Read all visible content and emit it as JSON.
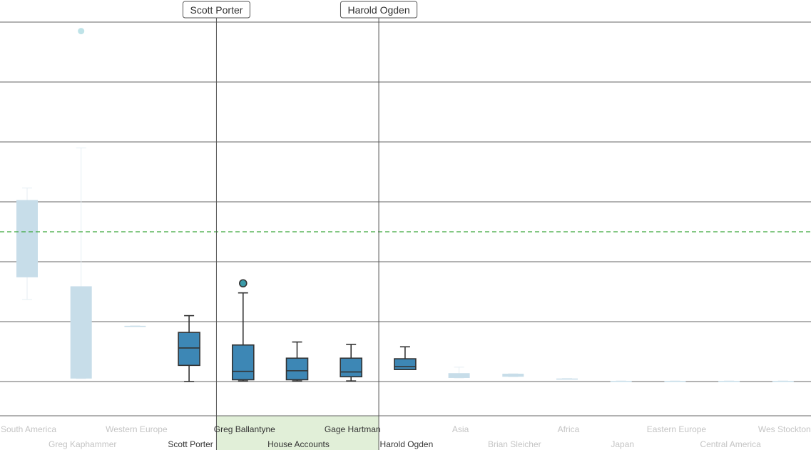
{
  "chart_data": {
    "type": "boxplot",
    "title": "",
    "xlabel": "",
    "ylabel": "",
    "ylim": [
      0,
      600
    ],
    "grid": true,
    "reference_line": {
      "value": 250,
      "style": "dashed",
      "color": "#3aa63a"
    },
    "selection": {
      "start_marker": "Scott Porter",
      "end_marker": "Harold Ogden",
      "highlighted_categories": [
        "Greg Ballantyne",
        "House Accounts",
        "Gage Hartman"
      ]
    },
    "colors": {
      "active_box": "#3d87b5",
      "inactive_box": "#c7dde9",
      "outlier_active": "#3a9aa8",
      "outlier_inactive": "#bfe3e8",
      "selection_fill": "#e1efd8",
      "grid": "#333333",
      "active_label": "#333333",
      "inactive_label": "#c4c4c4"
    },
    "categories": [
      {
        "name": "South America",
        "active": false,
        "row": 0,
        "min": 137,
        "q1": 174,
        "median": 174,
        "q3": 303,
        "max": 323,
        "outliers": []
      },
      {
        "name": "Greg Kaphammer",
        "active": false,
        "row": 1,
        "min": 5,
        "q1": 5,
        "median": 5,
        "q3": 159,
        "max": 390,
        "outliers": [
          585
        ]
      },
      {
        "name": "Western Europe",
        "active": false,
        "row": 0,
        "min": 93,
        "q1": 93,
        "median": 93,
        "q3": 93,
        "max": 93,
        "outliers": []
      },
      {
        "name": "Scott Porter",
        "active": true,
        "row": 1,
        "min": 0,
        "q1": 27,
        "median": 56,
        "q3": 82,
        "max": 110,
        "outliers": []
      },
      {
        "name": "Greg Ballantyne",
        "active": true,
        "row": 0,
        "min": 1,
        "q1": 3,
        "median": 17,
        "q3": 61,
        "max": 148,
        "outliers": [
          164
        ]
      },
      {
        "name": "House Accounts",
        "active": true,
        "row": 1,
        "min": 1,
        "q1": 3,
        "median": 18,
        "q3": 39,
        "max": 66,
        "outliers": []
      },
      {
        "name": "Gage Hartman",
        "active": true,
        "row": 0,
        "min": 1,
        "q1": 8,
        "median": 16,
        "q3": 39,
        "max": 62,
        "outliers": []
      },
      {
        "name": "Harold Ogden",
        "active": true,
        "row": 1,
        "min": 20,
        "q1": 20,
        "median": 25,
        "q3": 38,
        "max": 58,
        "outliers": []
      },
      {
        "name": "Asia",
        "active": false,
        "row": 0,
        "min": 6,
        "q1": 6,
        "median": 6,
        "q3": 14,
        "max": 24,
        "outliers": []
      },
      {
        "name": "Brian Sleicher",
        "active": false,
        "row": 1,
        "min": 8,
        "q1": 8,
        "median": 8,
        "q3": 13,
        "max": 13,
        "outliers": []
      },
      {
        "name": "Africa",
        "active": false,
        "row": 0,
        "min": 5,
        "q1": 5,
        "median": 5,
        "q3": 5,
        "max": 5,
        "outliers": []
      },
      {
        "name": "Japan",
        "active": false,
        "row": 1,
        "min": 1,
        "q1": 1,
        "median": 1,
        "q3": 1,
        "max": 1,
        "outliers": []
      },
      {
        "name": "Eastern Europe",
        "active": false,
        "row": 0,
        "min": 1,
        "q1": 1,
        "median": 1,
        "q3": 1,
        "max": 1,
        "outliers": []
      },
      {
        "name": "Central America",
        "active": false,
        "row": 1,
        "min": 1,
        "q1": 1,
        "median": 1,
        "q3": 1,
        "max": 1,
        "outliers": []
      },
      {
        "name": "Wes Stockton",
        "active": false,
        "row": 0,
        "min": 1,
        "q1": 1,
        "median": 1,
        "q3": 1,
        "max": 1,
        "outliers": []
      }
    ]
  }
}
